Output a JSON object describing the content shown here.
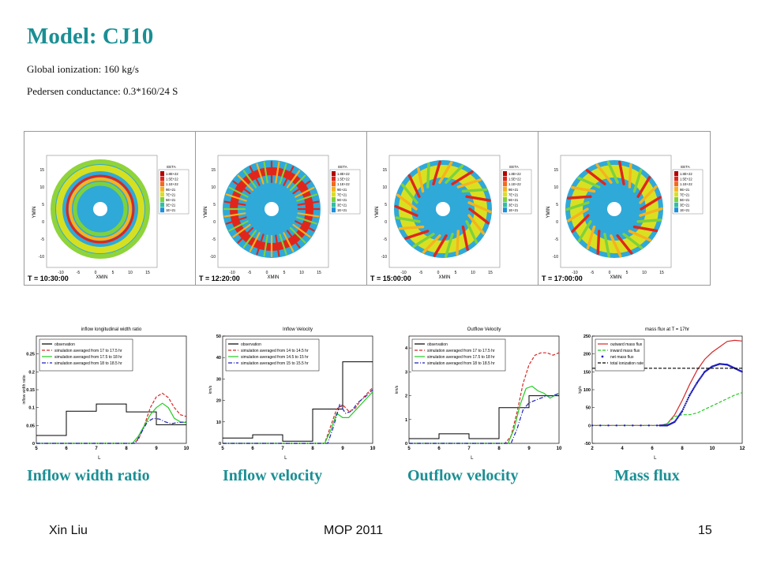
{
  "title": "Model: CJ10",
  "subtitle_1": "Global ionization: 160 kg/s",
  "subtitle_2": "Pedersen conductance: 0.3*160/24 S",
  "sim_panels": [
    {
      "time": "T = 10:30:00",
      "pattern": "rings"
    },
    {
      "time": "T = 12:20:00",
      "pattern": "fingers"
    },
    {
      "time": "T = 15:00:00",
      "pattern": "swirl"
    },
    {
      "time": "T = 17:00:00",
      "pattern": "swirl2"
    }
  ],
  "sim_axis": {
    "xlabel": "XMIN",
    "ylabel": "YMIN",
    "ticks": [
      "-10",
      "-5",
      "0",
      "5",
      "10",
      "15"
    ],
    "legend_title": "EETA",
    "legend_labels": [
      "1.8E+22",
      "1.5E+22",
      "1.1E+22",
      "9E+21",
      "7E+21",
      "5E+21",
      "3E+21",
      "1E+21"
    ]
  },
  "colors": {
    "accent": "#1a8f94",
    "obs": "#000000",
    "red": "#d62728",
    "green": "#22cc22",
    "blue": "#1f1fbf",
    "dark": "#333333"
  },
  "captions": [
    "Inflow width ratio",
    "Inflow velocity",
    "Outflow velocity",
    "Mass flux"
  ],
  "footer": {
    "left": "Xin Liu",
    "center": "MOP 2011",
    "right": "15"
  },
  "chart_data": [
    {
      "type": "line",
      "title": "inflow longitudinal width ratio",
      "xlabel": "L",
      "ylabel": "inflow width ratio",
      "xlim": [
        5,
        10
      ],
      "ylim": [
        0,
        0.3
      ],
      "xticks": [
        "5",
        "6",
        "7",
        "8",
        "9",
        "10"
      ],
      "yticks": [
        "0",
        "0.05",
        "0.1",
        "0.15",
        "0.2",
        "0.25"
      ],
      "series": [
        {
          "name": "observation",
          "style": "step",
          "color": "#000000",
          "x": [
            5,
            6,
            6,
            7,
            7,
            8,
            8,
            9,
            9,
            10
          ],
          "y": [
            0.022,
            0.022,
            0.09,
            0.09,
            0.11,
            0.11,
            0.088,
            0.088,
            0.052,
            0.052
          ]
        },
        {
          "name": "simulation averaged from 17 to 17.5 hr",
          "style": "dash",
          "color": "#d62728",
          "x": [
            5,
            8,
            8.2,
            8.4,
            8.6,
            8.8,
            9,
            9.2,
            9.4,
            9.6,
            9.8,
            10
          ],
          "y": [
            0,
            0,
            0,
            0.01,
            0.05,
            0.1,
            0.13,
            0.14,
            0.128,
            0.1,
            0.08,
            0.075
          ]
        },
        {
          "name": "simulation averaged from 17.5 to 18 hr",
          "style": "solid",
          "color": "#22cc22",
          "x": [
            5,
            8.2,
            8.4,
            8.6,
            8.8,
            9,
            9.2,
            9.4,
            9.6,
            9.8,
            10
          ],
          "y": [
            0,
            0,
            0.02,
            0.05,
            0.08,
            0.1,
            0.112,
            0.1,
            0.07,
            0.06,
            0.058
          ]
        },
        {
          "name": "simulation averaged from 18 to 18.5 hr",
          "style": "dashdot",
          "color": "#1f1fbf",
          "x": [
            5,
            8.3,
            8.5,
            8.7,
            8.9,
            9.1,
            9.3,
            9.5,
            9.7,
            10
          ],
          "y": [
            0,
            0,
            0.03,
            0.06,
            0.07,
            0.068,
            0.06,
            0.055,
            0.058,
            0.06
          ]
        }
      ]
    },
    {
      "type": "line",
      "title": "Inflow Velocity",
      "xlabel": "L",
      "ylabel": "km/s",
      "xlim": [
        5,
        10
      ],
      "ylim": [
        0,
        50
      ],
      "xticks": [
        "5",
        "6",
        "7",
        "8",
        "9",
        "10"
      ],
      "yticks": [
        "0",
        "10",
        "20",
        "30",
        "40",
        "50"
      ],
      "series": [
        {
          "name": "observation",
          "style": "step",
          "color": "#000000",
          "x": [
            5,
            6,
            6,
            7,
            7,
            8,
            8,
            9,
            9,
            10
          ],
          "y": [
            2.5,
            2.5,
            4,
            4,
            1,
            1,
            16,
            16,
            38,
            38
          ]
        },
        {
          "name": "simulation averaged from 14 to 14.5 hr",
          "style": "dash",
          "color": "#d62728",
          "x": [
            5,
            8.4,
            8.6,
            8.8,
            9,
            9.2,
            9.4,
            9.6,
            9.8,
            10
          ],
          "y": [
            0,
            0,
            8,
            16,
            18,
            15,
            16,
            20,
            23,
            26
          ]
        },
        {
          "name": "simulation averaged from 14.5 to 15 hr",
          "style": "solid",
          "color": "#22cc22",
          "x": [
            5,
            8.4,
            8.6,
            8.8,
            9,
            9.2,
            9.4,
            9.6,
            9.8,
            10
          ],
          "y": [
            0,
            0,
            6,
            14,
            12,
            12,
            15,
            18,
            21,
            24
          ]
        },
        {
          "name": "simulation averaged from 15 to 15.5 hr",
          "style": "dashdot",
          "color": "#1f1fbf",
          "x": [
            5,
            8.5,
            8.7,
            8.9,
            9.1,
            9.3,
            9.5,
            9.7,
            10
          ],
          "y": [
            0,
            0,
            8,
            18,
            14,
            15,
            19,
            21,
            25
          ]
        }
      ]
    },
    {
      "type": "line",
      "title": "Outflow Velocity",
      "xlabel": "L",
      "ylabel": "km/s",
      "xlim": [
        5,
        10
      ],
      "ylim": [
        0,
        4.5
      ],
      "xticks": [
        "5",
        "6",
        "7",
        "8",
        "9",
        "10"
      ],
      "yticks": [
        "0",
        "1",
        "2",
        "3",
        "4"
      ],
      "series": [
        {
          "name": "observation",
          "style": "step",
          "color": "#000000",
          "x": [
            5,
            6,
            6,
            7,
            7,
            8,
            8,
            9,
            9,
            10
          ],
          "y": [
            0.2,
            0.2,
            0.4,
            0.4,
            0.2,
            0.2,
            1.5,
            1.5,
            2.0,
            2.0
          ]
        },
        {
          "name": "simulation averaged from 17 to 17.5 hr",
          "style": "dash",
          "color": "#d62728",
          "x": [
            5,
            8.2,
            8.4,
            8.6,
            8.8,
            9,
            9.2,
            9.4,
            9.6,
            9.8,
            10
          ],
          "y": [
            0,
            0,
            0.3,
            1.3,
            2.5,
            3.3,
            3.7,
            3.8,
            3.8,
            3.7,
            3.8
          ]
        },
        {
          "name": "simulation averaged from 17.5 to 18 hr",
          "style": "solid",
          "color": "#22cc22",
          "x": [
            5,
            8.3,
            8.5,
            8.7,
            8.9,
            9.1,
            9.3,
            9.5,
            9.7,
            10
          ],
          "y": [
            0,
            0,
            0.6,
            1.6,
            2.3,
            2.4,
            2.2,
            2.1,
            1.9,
            2.1
          ]
        },
        {
          "name": "simulation averaged from 18 to 18.5 hr",
          "style": "dashdot",
          "color": "#1f1fbf",
          "x": [
            5,
            8.4,
            8.6,
            8.8,
            9,
            9.2,
            9.4,
            9.6,
            9.8,
            10
          ],
          "y": [
            0,
            0,
            0.6,
            1.4,
            1.7,
            1.8,
            1.9,
            2.0,
            2.0,
            2.1
          ]
        }
      ]
    },
    {
      "type": "line",
      "title": "mass flux at T = 17hr",
      "xlabel": "L",
      "ylabel": "kg/s",
      "xlim": [
        2,
        12
      ],
      "ylim": [
        -50,
        250
      ],
      "xticks": [
        "2",
        "4",
        "6",
        "8",
        "10",
        "12"
      ],
      "yticks": [
        "-50",
        "0",
        "50",
        "100",
        "150",
        "200",
        "250"
      ],
      "series": [
        {
          "name": "outward mass flux",
          "style": "solid",
          "color": "#d62728",
          "x": [
            2,
            6.5,
            7,
            7.5,
            8,
            8.5,
            9,
            9.5,
            10,
            10.5,
            11,
            11.5,
            12
          ],
          "y": [
            0,
            0,
            5,
            30,
            70,
            115,
            155,
            185,
            205,
            220,
            235,
            238,
            236
          ]
        },
        {
          "name": "inward mass flux",
          "style": "dash",
          "color": "#22cc22",
          "x": [
            2,
            6.5,
            7,
            7.5,
            8,
            8.5,
            9,
            9.5,
            10,
            10.5,
            11,
            11.5,
            12
          ],
          "y": [
            0,
            0,
            5,
            25,
            30,
            30,
            35,
            45,
            55,
            65,
            75,
            85,
            92
          ]
        },
        {
          "name": "net mass flux",
          "style": "dots",
          "color": "#1f1fbf",
          "x": [
            2,
            6.5,
            7,
            7.5,
            8,
            8.5,
            9,
            9.5,
            10,
            10.5,
            11,
            11.5,
            12
          ],
          "y": [
            0,
            0,
            0,
            10,
            40,
            85,
            120,
            150,
            165,
            172,
            170,
            160,
            150
          ]
        },
        {
          "name": "total ionization rate",
          "style": "hdash",
          "color": "#000000",
          "x": [
            2,
            12
          ],
          "y": [
            160,
            160
          ]
        }
      ]
    }
  ]
}
